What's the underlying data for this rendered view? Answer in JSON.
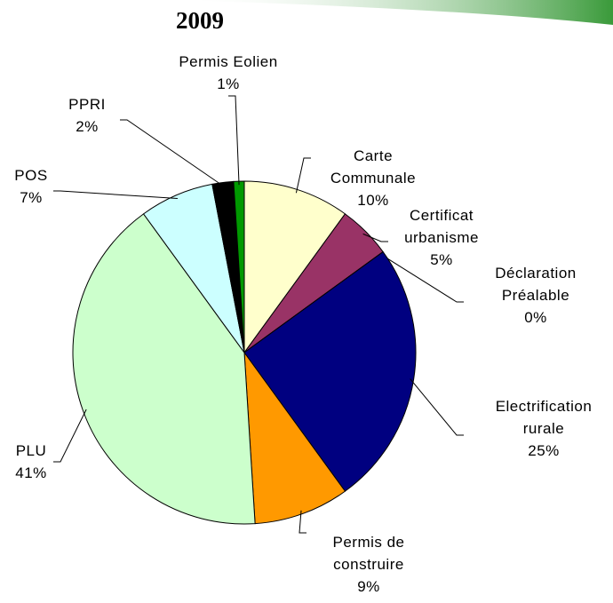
{
  "chart_data": {
    "type": "pie",
    "title": "2009",
    "categories": [
      "Carte Communale",
      "Certificat urbanisme",
      "Déclaration Préalable",
      "Electrification rurale",
      "Permis de construire",
      "PLU",
      "POS",
      "PPRI",
      "Permis Eolien"
    ],
    "values": [
      10,
      5,
      0,
      25,
      9,
      41,
      7,
      2,
      1
    ],
    "value_labels": [
      "10%",
      "5%",
      "0%",
      "25%",
      "9%",
      "41%",
      "7%",
      "2%",
      "1%"
    ],
    "colors": [
      "#FFFFCC",
      "#993366",
      "#FFFFCC",
      "#000080",
      "#FF9900",
      "#CCFFCC",
      "#CCFFFF",
      "#000000",
      "#009900"
    ]
  }
}
